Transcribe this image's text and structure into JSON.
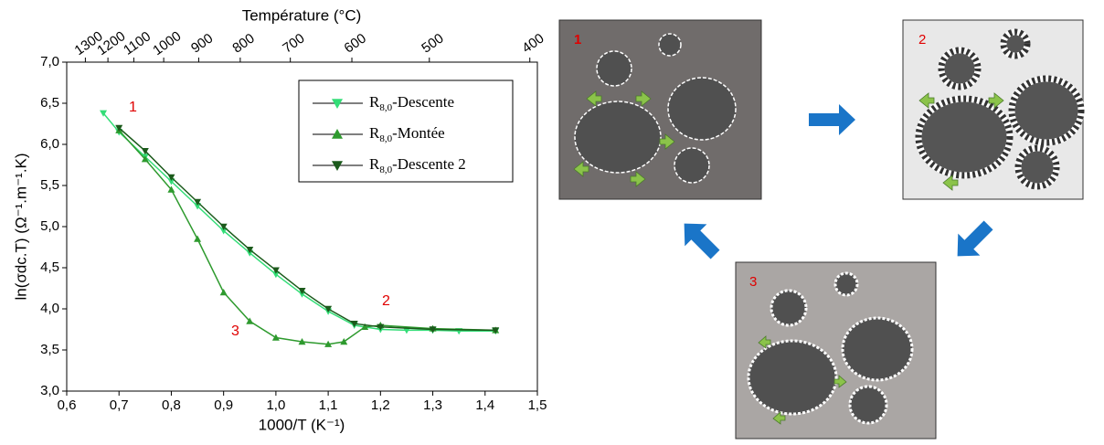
{
  "chart_data": {
    "type": "line",
    "x_label": "1000/T (K⁻¹)",
    "y_label": "ln(σdc.T) (Ω⁻¹.m⁻¹.K)",
    "x2_label": "Température (°C)",
    "xlim": [
      0.6,
      1.5
    ],
    "xticks": [
      {
        "value": 0.6,
        "label": "0,6"
      },
      {
        "value": 0.7,
        "label": "0,7"
      },
      {
        "value": 0.8,
        "label": "0,8"
      },
      {
        "value": 0.9,
        "label": "0,9"
      },
      {
        "value": 1.0,
        "label": "1,0"
      },
      {
        "value": 1.1,
        "label": "1,1"
      },
      {
        "value": 1.2,
        "label": "1,2"
      },
      {
        "value": 1.3,
        "label": "1,3"
      },
      {
        "value": 1.4,
        "label": "1,4"
      },
      {
        "value": 1.5,
        "label": "1,5"
      }
    ],
    "ylim": [
      3.0,
      7.0
    ],
    "yticks": [
      {
        "value": 3.0,
        "label": "3,0"
      },
      {
        "value": 3.5,
        "label": "3,5"
      },
      {
        "value": 4.0,
        "label": "4,0"
      },
      {
        "value": 4.5,
        "label": "4,5"
      },
      {
        "value": 5.0,
        "label": "5,0"
      },
      {
        "value": 5.5,
        "label": "5,5"
      },
      {
        "value": 6.0,
        "label": "6,0"
      },
      {
        "value": 6.5,
        "label": "6,5"
      },
      {
        "value": 7.0,
        "label": "7,0"
      }
    ],
    "x2ticks": [
      1300,
      1200,
      1100,
      1000,
      900,
      800,
      700,
      600,
      500,
      400
    ],
    "legend": "upper right",
    "annotations": [
      "1",
      "2",
      "3"
    ],
    "series": [
      {
        "name": "R8,0-Descente",
        "color": "#33dd77",
        "marker": "down",
        "x": [
          0.67,
          0.7,
          0.75,
          0.8,
          0.85,
          0.9,
          0.95,
          1.0,
          1.05,
          1.1,
          1.15,
          1.2,
          1.25,
          1.3,
          1.35,
          1.42
        ],
        "values": [
          6.38,
          6.15,
          5.85,
          5.55,
          5.25,
          4.95,
          4.68,
          4.42,
          4.18,
          3.97,
          3.8,
          3.75,
          3.74,
          3.74,
          3.73,
          3.73
        ]
      },
      {
        "name": "R8,0-Montée",
        "color": "#2e9a2e",
        "marker": "up",
        "x": [
          0.7,
          0.75,
          0.8,
          0.85,
          0.9,
          0.95,
          1.0,
          1.05,
          1.1,
          1.13,
          1.17,
          1.2,
          1.3,
          1.42
        ],
        "values": [
          6.17,
          5.82,
          5.45,
          4.85,
          4.2,
          3.85,
          3.65,
          3.6,
          3.57,
          3.6,
          3.78,
          3.8,
          3.76,
          3.74
        ]
      },
      {
        "name": "R8,0-Descente 2",
        "color": "#1b5a1b",
        "marker": "down",
        "x": [
          0.7,
          0.75,
          0.8,
          0.85,
          0.9,
          0.95,
          1.0,
          1.05,
          1.1,
          1.15,
          1.2,
          1.3,
          1.42
        ],
        "values": [
          6.2,
          5.92,
          5.6,
          5.3,
          5.0,
          4.72,
          4.47,
          4.22,
          4.0,
          3.82,
          3.78,
          3.75,
          3.74
        ]
      }
    ]
  },
  "diagram": {
    "panels": [
      {
        "label": "1"
      },
      {
        "label": "2"
      },
      {
        "label": "3"
      }
    ]
  }
}
